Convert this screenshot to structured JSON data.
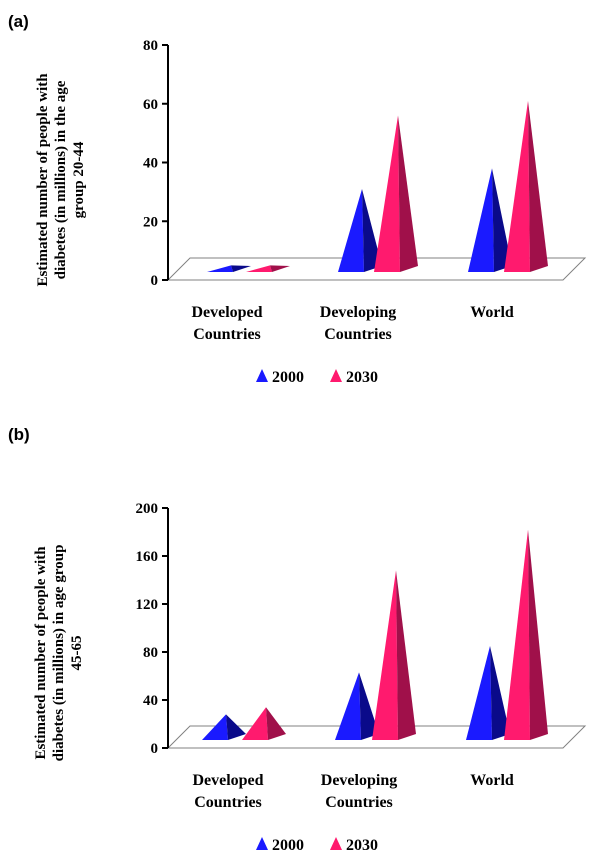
{
  "colors": {
    "series_2000": "#1a1aff",
    "series_2000_dark": "#0a0a8a",
    "series_2030": "#ff1a6e",
    "series_2030_dark": "#a0104a",
    "axis": "#000000",
    "floor": "#808080"
  },
  "chart_data": [
    {
      "type": "bar",
      "panel_label": "(a)",
      "ylabel_lines": [
        "Estimated number of people with",
        "diabetes (in millions) in the age",
        "group 20-44"
      ],
      "categories": [
        [
          "Developed",
          "Countries"
        ],
        [
          "Developing",
          "Countries"
        ],
        [
          "World"
        ]
      ],
      "series": [
        {
          "name": "2000",
          "values": [
            5,
            31,
            38
          ]
        },
        {
          "name": "2030",
          "values": [
            5,
            56,
            61
          ]
        }
      ],
      "ylim": [
        0,
        80
      ],
      "yticks": [
        "0",
        "20",
        "40",
        "60",
        "80"
      ],
      "legend_position": "bottom"
    },
    {
      "type": "bar",
      "panel_label": "(b)",
      "ylabel_lines": [
        "Estimated number of people with",
        "diabetes (in millions) in age group",
        "45-65"
      ],
      "categories": [
        [
          "Developed",
          "Countries"
        ],
        [
          "Developing",
          "Countries"
        ],
        [
          "World"
        ]
      ],
      "series": [
        {
          "name": "2000",
          "values": [
            28,
            63,
            85
          ]
        },
        {
          "name": "2030",
          "values": [
            34,
            148,
            182
          ]
        }
      ],
      "ylim": [
        0,
        200
      ],
      "yticks": [
        "0",
        "40",
        "80",
        "120",
        "160",
        "200"
      ],
      "legend_position": "bottom"
    }
  ]
}
